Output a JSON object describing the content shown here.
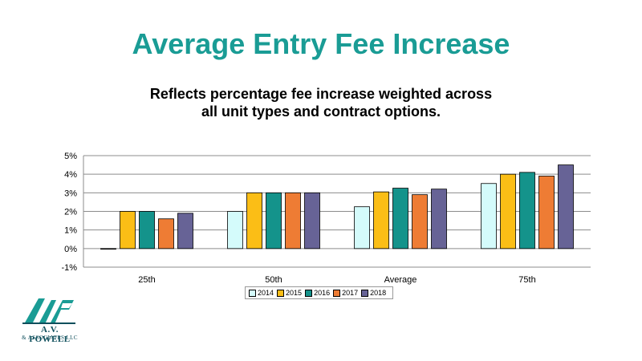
{
  "title": "Average Entry Fee Increase",
  "subtitle": {
    "line1": "Reflects percentage fee increase weighted across",
    "line2": "all unit types and contract options."
  },
  "logo": {
    "name": "A.V. POWELL",
    "sub": "& ASSOCIATES LLC"
  },
  "colors": {
    "title": "#1a9c95",
    "2014": "#d4fbfb",
    "2015": "#fbbe16",
    "2016": "#14938b",
    "2017": "#ee7c34",
    "2018": "#676396"
  },
  "chart_data": {
    "type": "bar",
    "categories": [
      "25th",
      "50th",
      "Average",
      "75th"
    ],
    "series": [
      {
        "name": "2014",
        "values": [
          0.0,
          2.0,
          2.25,
          3.5
        ]
      },
      {
        "name": "2015",
        "values": [
          2.0,
          3.0,
          3.05,
          4.0
        ]
      },
      {
        "name": "2016",
        "values": [
          2.0,
          3.0,
          3.25,
          4.1
        ]
      },
      {
        "name": "2017",
        "values": [
          1.6,
          3.0,
          2.9,
          3.9
        ]
      },
      {
        "name": "2018",
        "values": [
          1.9,
          3.0,
          3.2,
          4.5
        ]
      }
    ],
    "ylim": [
      -1,
      5
    ],
    "yticks": [
      "-1%",
      "0%",
      "1%",
      "2%",
      "3%",
      "4%",
      "5%"
    ],
    "grid": true,
    "legend_position": "bottom"
  }
}
